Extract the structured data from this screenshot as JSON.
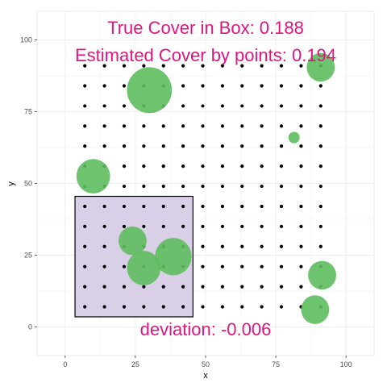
{
  "chart_data": {
    "type": "scatter",
    "xlabel": "x",
    "ylabel": "y",
    "xlim": [
      -10,
      110
    ],
    "ylim": [
      -10,
      110
    ],
    "x_ticks": [
      0,
      25,
      50,
      75,
      100
    ],
    "y_ticks": [
      0,
      25,
      50,
      75,
      100
    ],
    "grid": true,
    "annotations": {
      "true_cover": "True Cover in Box: 0.188",
      "estimated_cover": "Estimated Cover by points: 0.194",
      "deviation": "deviation: -0.006"
    },
    "annotation_color": "#e0157f",
    "panel_background": "#ffffff",
    "grid_color": "#ebebeb",
    "point_color": "#000000",
    "circle_color": "#5ebd5e",
    "box_fill": "#d9d0e8",
    "box": {
      "xmin": 3.5,
      "xmax": 45.5,
      "ymin": 3.5,
      "ymax": 45.5
    },
    "grid_points": {
      "x": [
        7,
        14,
        21,
        28,
        35,
        42,
        49,
        56,
        63,
        70,
        77,
        84,
        91
      ],
      "y": [
        7,
        14,
        21,
        28,
        35,
        42,
        49,
        56,
        63,
        70,
        77,
        84,
        91
      ]
    },
    "circles": [
      {
        "x": 30,
        "y": 82.5,
        "r": 8
      },
      {
        "x": 91,
        "y": 90.5,
        "r": 5
      },
      {
        "x": 81.5,
        "y": 66,
        "r": 2
      },
      {
        "x": 10,
        "y": 52.5,
        "r": 6
      },
      {
        "x": 24,
        "y": 30,
        "r": 5
      },
      {
        "x": 38.5,
        "y": 24.5,
        "r": 6.5
      },
      {
        "x": 28,
        "y": 20.5,
        "r": 6
      },
      {
        "x": 91.5,
        "y": 18,
        "r": 5
      },
      {
        "x": 89,
        "y": 6,
        "r": 5
      }
    ]
  }
}
